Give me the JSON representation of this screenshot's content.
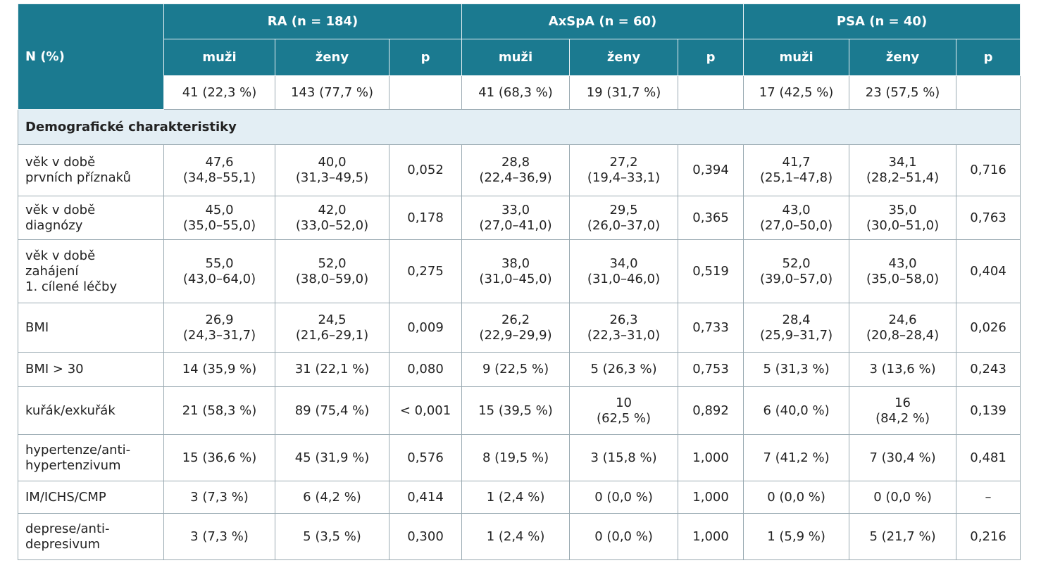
{
  "header": {
    "label": "N (%)",
    "groups": [
      {
        "title": "RA (n = 184)",
        "columns": [
          "muži",
          "ženy",
          "p"
        ]
      },
      {
        "title": "AxSpA (n = 60)",
        "columns": [
          "muži",
          "ženy",
          "p"
        ]
      },
      {
        "title": "PSA (n = 40)",
        "columns": [
          "muži",
          "ženy",
          "p"
        ]
      }
    ],
    "counts": [
      "41 (22,3 %)",
      "143 (77,7 %)",
      "",
      "41 (68,3 %)",
      "19 (31,7 %)",
      "",
      "17 (42,5 %)",
      "23 (57,5 %)",
      ""
    ]
  },
  "section": "Demografické charakteristiky",
  "rows": [
    {
      "label": "věk v době\nprvních příznaků",
      "cells": [
        "47,6\n(34,8–55,1)",
        "40,0\n(31,3–49,5)",
        "0,052",
        "28,8\n(22,4–36,9)",
        "27,2\n(19,4–33,1)",
        "0,394",
        "41,7\n(25,1–47,8)",
        "34,1\n(28,2–51,4)",
        "0,716"
      ]
    },
    {
      "label": "věk v době\ndiagnózy",
      "cells": [
        "45,0\n(35,0–55,0)",
        "42,0\n(33,0–52,0)",
        "0,178",
        "33,0\n(27,0–41,0)",
        "29,5\n(26,0–37,0)",
        "0,365",
        "43,0\n(27,0–50,0)",
        "35,0\n(30,0–51,0)",
        "0,763"
      ]
    },
    {
      "label": "věk v době\nzahájení\n1. cílené léčby",
      "cells": [
        "55,0\n(43,0–64,0)",
        "52,0\n(38,0–59,0)",
        "0,275",
        "38,0\n(31,0–45,0)",
        "34,0\n(31,0–46,0)",
        "0,519",
        "52,0\n(39,0–57,0)",
        "43,0\n(35,0–58,0)",
        "0,404"
      ]
    },
    {
      "label": "BMI",
      "cells": [
        "26,9\n(24,3–31,7)",
        "24,5\n(21,6–29,1)",
        "0,009",
        "26,2\n(22,9–29,9)",
        "26,3\n(22,3–31,0)",
        "0,733",
        "28,4\n(25,9–31,7)",
        "24,6\n(20,8–28,4)",
        "0,026"
      ]
    },
    {
      "label": "BMI > 30",
      "cells": [
        "14 (35,9 %)",
        "31 (22,1 %)",
        "0,080",
        "9 (22,5 %)",
        "5 (26,3 %)",
        "0,753",
        "5 (31,3 %)",
        "3 (13,6 %)",
        "0,243"
      ]
    },
    {
      "label": "kuřák/exkuřák",
      "cells": [
        "21 (58,3 %)",
        "89 (75,4 %)",
        "< 0,001",
        "15 (39,5 %)",
        "10\n(62,5 %)",
        "0,892",
        "6 (40,0 %)",
        "16\n(84,2 %)",
        "0,139"
      ]
    },
    {
      "label": "hypertenze/anti-\nhypertenzivum",
      "cells": [
        "15 (36,6 %)",
        "45 (31,9 %)",
        "0,576",
        "8 (19,5 %)",
        "3 (15,8 %)",
        "1,000",
        "7 (41,2 %)",
        "7 (30,4 %)",
        "0,481"
      ]
    },
    {
      "label": "IM/ICHS/CMP",
      "cells": [
        "3 (7,3 %)",
        "6 (4,2 %)",
        "0,414",
        "1 (2,4 %)",
        "0 (0,0 %)",
        "1,000",
        "0 (0,0 %)",
        "0 (0,0 %)",
        "–"
      ]
    },
    {
      "label": "deprese/anti-\ndepresivum",
      "cells": [
        "3 (7,3 %)",
        "5 (3,5 %)",
        "0,300",
        "1 (2,4 %)",
        "0 (0,0 %)",
        "1,000",
        "1 (5,9 %)",
        "5 (21,7 %)",
        "0,216"
      ]
    }
  ]
}
